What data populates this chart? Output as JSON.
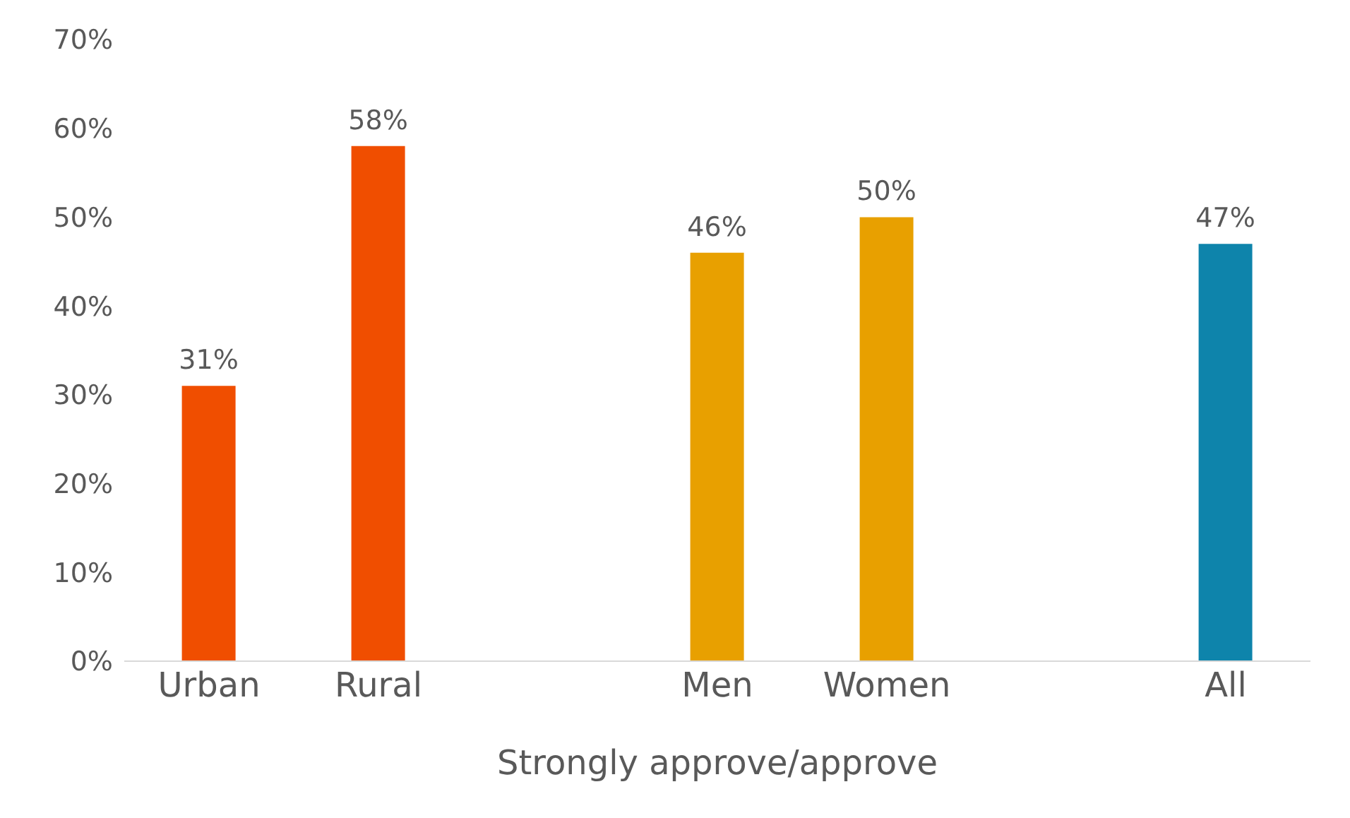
{
  "chart_data": {
    "type": "bar",
    "xlabel": "Strongly approve/approve",
    "categories": [
      "Urban",
      "Rural",
      null,
      "Men",
      "Women",
      null,
      "All"
    ],
    "values": [
      31,
      58,
      null,
      46,
      50,
      null,
      47
    ],
    "colors": [
      "#f04e00",
      "#f04e00",
      "#f04e00",
      "#e8a000",
      "#e8a000",
      "#0e84ab",
      "#0e84ab"
    ],
    "value_labels": [
      "31%",
      "58%",
      null,
      "46%",
      "50%",
      null,
      "47%"
    ],
    "ylim": [
      0,
      70
    ],
    "yticks": [
      {
        "value": 0,
        "label": "0%"
      },
      {
        "value": 10,
        "label": "10%"
      },
      {
        "value": 20,
        "label": "20%"
      },
      {
        "value": 30,
        "label": "30%"
      },
      {
        "value": 40,
        "label": "40%"
      },
      {
        "value": 50,
        "label": "50%"
      },
      {
        "value": 60,
        "label": "60%"
      },
      {
        "value": 70,
        "label": "70%"
      }
    ],
    "grid": false,
    "legend": false
  }
}
